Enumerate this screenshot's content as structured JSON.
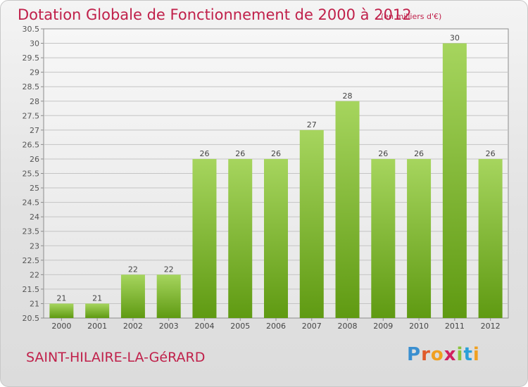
{
  "header": {
    "title": "Dotation Globale de Fonctionnement de 2000 à 2012",
    "unit": "(en milliers d'€)"
  },
  "footer": {
    "commune": "SAINT-HILAIRE-LA-GéRARD",
    "logo": "Proxiti"
  },
  "colors": {
    "title": "#c0204a",
    "bar_top": "#a6d55e",
    "bar_bottom": "#5f9a12"
  },
  "chart_data": {
    "type": "bar",
    "title": "Dotation Globale de Fonctionnement de 2000 à 2012",
    "subtitle": "(en milliers d'€)",
    "categories": [
      "2000",
      "2001",
      "2002",
      "2003",
      "2004",
      "2005",
      "2006",
      "2007",
      "2008",
      "2009",
      "2010",
      "2011",
      "2012"
    ],
    "values": [
      21,
      21,
      22,
      22,
      26,
      26,
      26,
      27,
      28,
      26,
      26,
      30,
      26
    ],
    "data_labels": [
      "21",
      "21",
      "22",
      "22",
      "26",
      "26",
      "26",
      "27",
      "28",
      "26",
      "26",
      "30",
      "26"
    ],
    "ylim": [
      20.5,
      30.5
    ],
    "yticks": [
      "20.5",
      "21",
      "21.5",
      "22",
      "22.5",
      "23",
      "23.5",
      "24",
      "24.5",
      "25",
      "25.5",
      "26",
      "26.5",
      "27",
      "27.5",
      "28",
      "28.5",
      "29",
      "29.5",
      "30",
      "30.5"
    ],
    "grid": true,
    "xlabel": "",
    "ylabel": ""
  }
}
